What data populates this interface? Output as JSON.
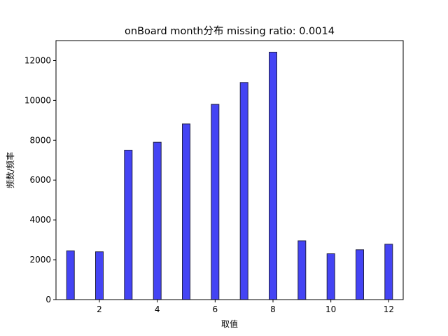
{
  "chart_data": {
    "type": "bar",
    "title": "onBoard month分布  missing ratio: 0.0014",
    "xlabel": "取值",
    "ylabel": "频数/频率",
    "x": [
      1,
      2,
      3,
      4,
      5,
      6,
      7,
      8,
      9,
      10,
      11,
      12
    ],
    "values": [
      2450,
      2400,
      7500,
      7900,
      8820,
      9800,
      10900,
      12420,
      2950,
      2300,
      2500,
      2780
    ],
    "xlim": [
      0.5,
      12.5
    ],
    "ylim": [
      0,
      13000
    ],
    "xticks": [
      2,
      4,
      6,
      8,
      10,
      12
    ],
    "yticks": [
      0,
      2000,
      4000,
      6000,
      8000,
      10000,
      12000
    ],
    "grid": false,
    "bar_color": "#4444f4",
    "edge_color": "#222244"
  }
}
